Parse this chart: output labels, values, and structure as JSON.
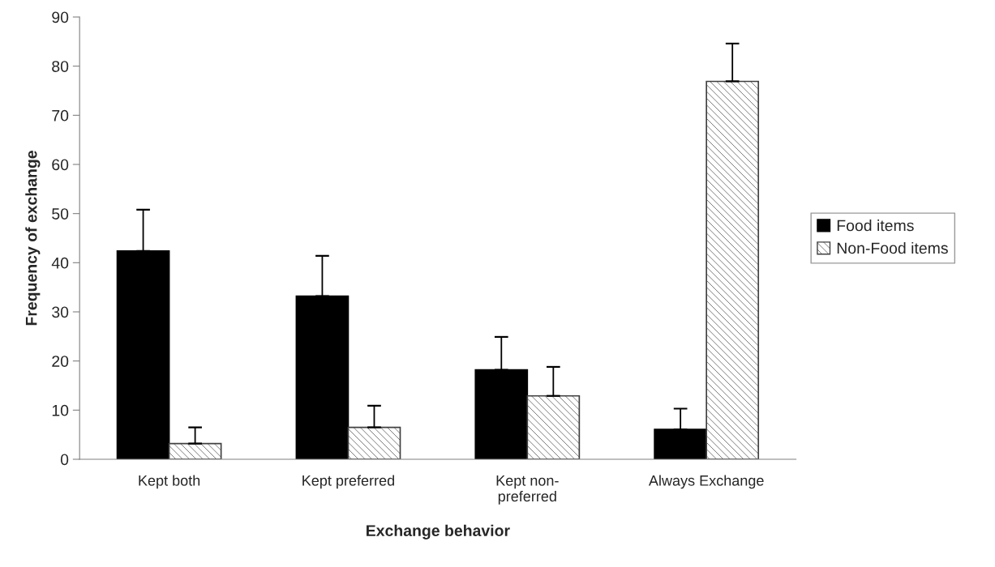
{
  "chart_data": {
    "type": "bar",
    "xlabel": "Exchange behavior",
    "ylabel": "Frequency of exchange",
    "categories": [
      "Kept both",
      "Kept preferred",
      "Kept non-\npreferred",
      "Always Exchange"
    ],
    "series": [
      {
        "name": "Food items",
        "color": "#000000",
        "values": [
          42.4,
          33.2,
          18.2,
          6.1
        ],
        "errors": [
          [
            42.4,
            50.8
          ],
          [
            33.2,
            41.4
          ],
          [
            18.2,
            24.9
          ],
          [
            6.1,
            10.3
          ]
        ]
      },
      {
        "name": "Non-Food items",
        "color": "#404040",
        "values": [
          3.2,
          6.5,
          12.9,
          76.9
        ],
        "errors": [
          [
            3.2,
            6.5
          ],
          [
            6.5,
            10.9
          ],
          [
            12.9,
            18.8
          ],
          [
            76.9,
            84.6
          ]
        ]
      }
    ],
    "ylim": [
      0,
      90
    ],
    "yticks": [
      0,
      10,
      20,
      30,
      40,
      50,
      60,
      70,
      80,
      90
    ],
    "grid": false,
    "legend": "right"
  }
}
